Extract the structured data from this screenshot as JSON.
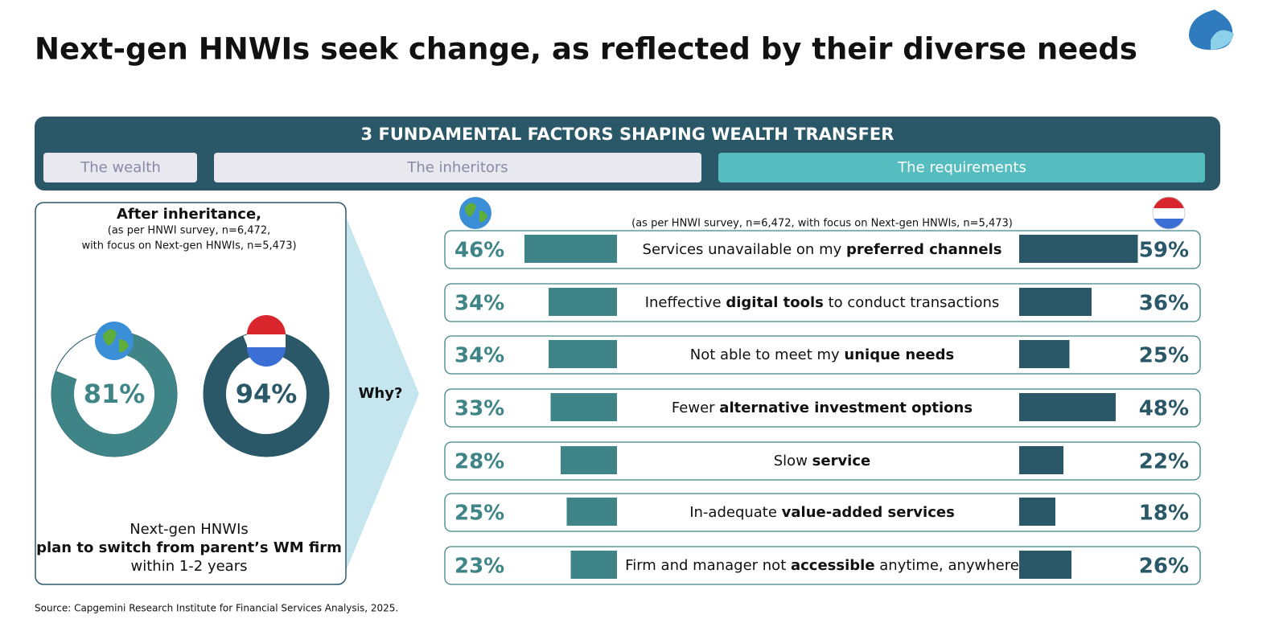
{
  "title": "Next-gen HNWIs seek change, as reflected by their diverse needs",
  "banner": {
    "heading": "3 FUNDAMENTAL FACTORS SHAPING WEALTH TRANSFER",
    "tabs": [
      "The wealth",
      "The inheritors",
      "The requirements"
    ]
  },
  "chart_data": [
    {
      "type": "donut",
      "title": "After inheritance,",
      "subtitle": [
        "(as per HNWI survey, n=6,472,",
        "with focus on Next-gen HNWIs, n=5,473)"
      ],
      "values": [
        81,
        94
      ],
      "value_labels": [
        "81%",
        "94%"
      ],
      "colors": [
        "#3f8587",
        "#2a5868"
      ],
      "ylim": [
        0,
        100
      ],
      "caption": [
        "Next-gen HNWIs",
        "plan to switch from parent’s WM firm",
        "within 1-2 years"
      ]
    },
    {
      "type": "bar",
      "subtitle": "(as per HNWI survey, n=6,472, with focus on Next-gen HNWIs, n=5,473)",
      "categories": [
        [
          "Services unavailable on my ",
          "preferred channels"
        ],
        [
          "Ineffective ",
          "digital tools",
          " to conduct transactions"
        ],
        [
          "Not able to meet my ",
          "unique needs"
        ],
        [
          "Fewer ",
          "alternative investment options"
        ],
        [
          "Slow ",
          "service"
        ],
        [
          "In-adequate ",
          "value-added services"
        ],
        [
          "Firm and manager not ",
          "accessible",
          " anytime, anywhere"
        ]
      ],
      "series": [
        {
          "values": [
            46,
            34,
            34,
            33,
            28,
            25,
            23
          ],
          "value_labels": [
            "46%",
            "34%",
            "34%",
            "33%",
            "28%",
            "25%",
            "23%"
          ],
          "color": "#3f8587"
        },
        {
          "values": [
            59,
            36,
            25,
            48,
            22,
            18,
            26
          ],
          "value_labels": [
            "59%",
            "36%",
            "25%",
            "48%",
            "22%",
            "18%",
            "26%"
          ],
          "color": "#2a5868"
        }
      ],
      "xlim": [
        0,
        60
      ]
    }
  ],
  "why": "Why?",
  "source": "Source: Capgemini Research Institute for Financial Services Analysis, 2025."
}
